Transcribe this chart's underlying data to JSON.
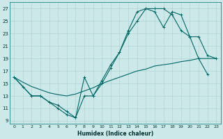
{
  "xlabel": "Humidex (Indice chaleur)",
  "bg_color": "#cce8e8",
  "grid_color": "#b0d4d4",
  "line_color": "#006666",
  "xlim": [
    -0.5,
    23.5
  ],
  "ylim": [
    8.5,
    28
  ],
  "xticks": [
    0,
    1,
    2,
    3,
    4,
    5,
    6,
    7,
    8,
    9,
    10,
    11,
    12,
    13,
    14,
    15,
    16,
    17,
    18,
    19,
    20,
    21,
    22,
    23
  ],
  "yticks": [
    9,
    11,
    13,
    15,
    17,
    19,
    21,
    23,
    25,
    27
  ],
  "curve1_x": [
    0,
    1,
    2,
    3,
    4,
    5,
    6,
    7,
    8,
    9,
    10,
    11,
    12,
    13,
    14,
    15,
    16,
    17,
    18,
    19,
    20,
    21,
    22
  ],
  "curve1_y": [
    16,
    14.5,
    13,
    13,
    12,
    11,
    10,
    9.5,
    16,
    13,
    15,
    17.5,
    20,
    23.5,
    26.5,
    27,
    27,
    27,
    26,
    23.5,
    22.5,
    19,
    16.5
  ],
  "curve2_x": [
    0,
    2,
    3,
    4,
    5,
    6,
    7,
    8,
    9,
    10,
    11,
    12,
    13,
    14,
    15,
    16,
    17,
    18,
    19,
    20,
    21,
    22,
    23
  ],
  "curve2_y": [
    16,
    13,
    13,
    12,
    11.5,
    10.5,
    9.5,
    13,
    13,
    15.5,
    18,
    20,
    23,
    25,
    27,
    26.5,
    24,
    26.5,
    26,
    22.5,
    22.5,
    19.5,
    19
  ],
  "line3_x": [
    0,
    1,
    2,
    3,
    4,
    5,
    6,
    7,
    8,
    9,
    10,
    11,
    12,
    13,
    14,
    15,
    16,
    17,
    18,
    19,
    20,
    21,
    22,
    23
  ],
  "line3_y": [
    16,
    15.2,
    14.5,
    14,
    13.5,
    13.2,
    13,
    13.3,
    13.8,
    14.3,
    15,
    15.5,
    16,
    16.5,
    17,
    17.3,
    17.8,
    18,
    18.2,
    18.5,
    18.7,
    19,
    19,
    19
  ]
}
